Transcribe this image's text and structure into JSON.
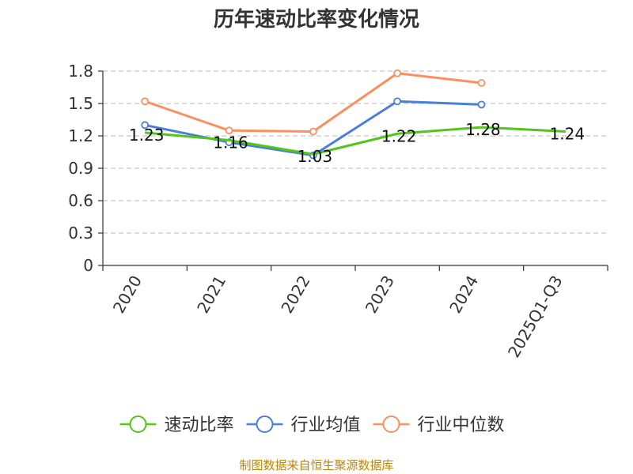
{
  "chart_data": {
    "type": "line",
    "title": "历年速动比率变化情况",
    "categories": [
      "2020",
      "2021",
      "2022",
      "2023",
      "2024",
      "2025Q1-Q3"
    ],
    "ylim": [
      0,
      1.8
    ],
    "yticks": [
      "0",
      "0.3",
      "0.6",
      "0.9",
      "1.2",
      "1.5",
      "1.8"
    ],
    "grid": true,
    "legend_position": "bottom",
    "series": [
      {
        "name": "速动比率",
        "color": "#52c41a",
        "values": [
          1.23,
          1.16,
          1.03,
          1.22,
          1.28,
          1.24
        ],
        "labels": [
          "1.23",
          "1.16",
          "1.03",
          "1.22",
          "1.28",
          "1.24"
        ]
      },
      {
        "name": "行业均值",
        "color": "#4a7fd8",
        "values": [
          1.3,
          1.14,
          1.02,
          1.52,
          1.49,
          null
        ]
      },
      {
        "name": "行业中位数",
        "color": "#f89060",
        "values": [
          1.52,
          1.25,
          1.24,
          1.78,
          1.69,
          null
        ]
      }
    ],
    "source": "制图数据来自恒生聚源数据库"
  }
}
